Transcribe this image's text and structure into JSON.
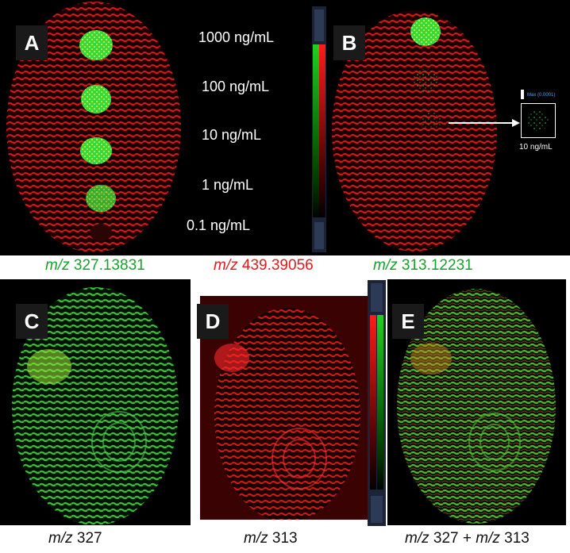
{
  "panels": {
    "a": {
      "label": "A"
    },
    "b": {
      "label": "B",
      "inset_caption": "10 ng/mL",
      "inset_max": "Max (0.0001)"
    },
    "c": {
      "label": "C"
    },
    "d": {
      "label": "D"
    },
    "e": {
      "label": "E"
    }
  },
  "concentrations": [
    "1000 ng/mL",
    "100 ng/mL",
    "10 ng/mL",
    "1 ng/mL",
    "0.1 ng/mL"
  ],
  "captions_top": [
    {
      "prefix": "m/z",
      "value": "327.13831",
      "color": "#17a12a"
    },
    {
      "prefix": "m/z",
      "value": "439.39056",
      "color": "#e11b1b"
    },
    {
      "prefix": "m/z",
      "value": "313.12231",
      "color": "#17a12a"
    }
  ],
  "captions_bottom": [
    {
      "prefix": "m/z",
      "value": "327"
    },
    {
      "prefix": "m/z",
      "value": "313"
    },
    {
      "prefix": "m/z",
      "value": "327 +",
      "prefix2": "m/z",
      "value2": "313"
    }
  ],
  "colors": {
    "red": "#d01515",
    "green": "#2fd12f",
    "yellow_green": "#b7ee2b"
  }
}
